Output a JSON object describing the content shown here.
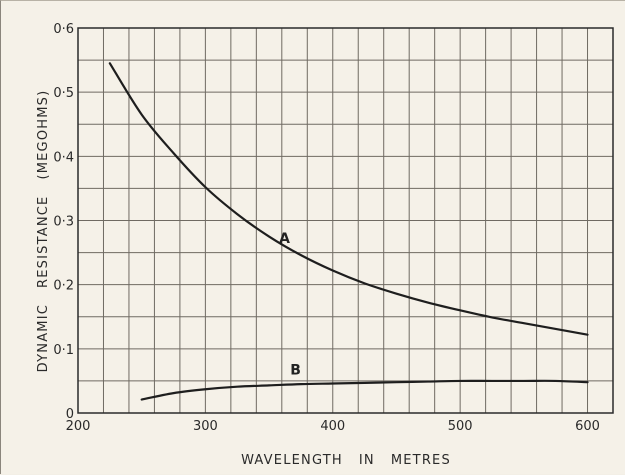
{
  "chart_data": {
    "type": "line",
    "title": "",
    "xlabel": "WAVELENGTH   IN   METRES",
    "ylabel": "DYNAMIC   RESISTANCE   (MEGOHMS)",
    "xlim": [
      200,
      620
    ],
    "ylim": [
      0,
      0.6
    ],
    "x_ticks": [
      200,
      300,
      400,
      500,
      600
    ],
    "x_tick_labels": [
      "200",
      "300",
      "400",
      "500",
      "600"
    ],
    "y_ticks": [
      0,
      0.1,
      0.2,
      0.3,
      0.4,
      0.5,
      0.6
    ],
    "y_tick_labels": [
      "0",
      "0·1",
      "0·2",
      "0·3",
      "0·4",
      "0·5",
      "0·6"
    ],
    "grid": true,
    "minor_grid_step_x": 20,
    "minor_grid_step_y": 0.05,
    "series": [
      {
        "name": "A",
        "color": "#1e1e1e",
        "x": [
          225,
          250,
          275,
          300,
          325,
          350,
          375,
          400,
          425,
          450,
          475,
          500,
          525,
          550,
          575,
          600
        ],
        "y": [
          0.545,
          0.465,
          0.405,
          0.352,
          0.31,
          0.275,
          0.246,
          0.222,
          0.202,
          0.186,
          0.172,
          0.16,
          0.149,
          0.14,
          0.131,
          0.122
        ]
      },
      {
        "name": "B",
        "color": "#1e1e1e",
        "x": [
          250,
          275,
          300,
          325,
          350,
          375,
          400,
          425,
          450,
          475,
          500,
          525,
          550,
          575,
          600
        ],
        "y": [
          0.021,
          0.031,
          0.037,
          0.041,
          0.043,
          0.045,
          0.046,
          0.047,
          0.048,
          0.049,
          0.05,
          0.05,
          0.05,
          0.05,
          0.048
        ]
      }
    ]
  }
}
